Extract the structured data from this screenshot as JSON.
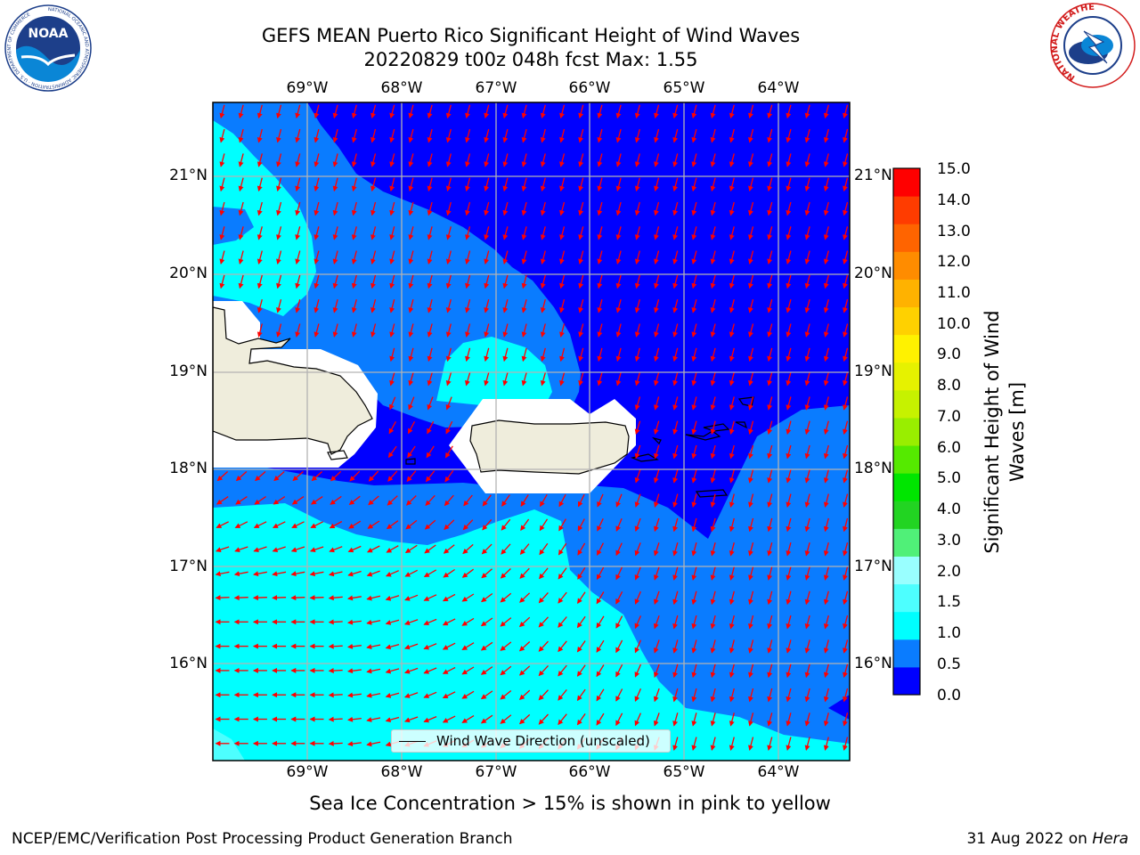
{
  "title": {
    "line1": "GEFS MEAN Puerto Rico Significant Height of Wind Waves",
    "line2": "20220829 t00z 048h fcst   Max: 1.55"
  },
  "map": {
    "lon_ticks": [
      "69°W",
      "68°W",
      "67°W",
      "66°W",
      "65°W",
      "64°W"
    ],
    "lat_ticks": [
      "21°N",
      "20°N",
      "19°N",
      "18°N",
      "17°N",
      "16°N"
    ],
    "extent": {
      "lon": [
        -70.0,
        -63.25
      ],
      "lat": [
        15.0,
        21.75
      ]
    },
    "grid": true,
    "land_color": "#efeddc",
    "wind_wave_direction": "toward south-southwest in the north and east, toward west in the south",
    "legend_label": "Wind Wave Direction (unscaled)"
  },
  "colorbar": {
    "label": "Significant Height of Wind Waves [m]",
    "ticks": [
      "15.0",
      "14.0",
      "13.0",
      "12.0",
      "11.0",
      "10.0",
      "9.0",
      "8.0",
      "7.0",
      "6.0",
      "5.0",
      "4.0",
      "3.0",
      "2.0",
      "1.5",
      "1.0",
      "0.5",
      "0.0"
    ],
    "colors": [
      "#0000ff",
      "#0a7cff",
      "#00ffff",
      "#4dffff",
      "#99ffff",
      "#50f078",
      "#22d422",
      "#00e600",
      "#55ea00",
      "#99ee00",
      "#c6f200",
      "#e6f200",
      "#fff200",
      "#ffd100",
      "#ffb200",
      "#ff8c00",
      "#ff6400",
      "#ff3c00",
      "#ff0000"
    ]
  },
  "logos": {
    "noaa": "NOAA",
    "noaa_ring": "NATIONAL OCEANIC AND ATMOSPHERIC ADMINISTRATION · U.S. DEPARTMENT OF COMMERCE",
    "nws_ring": "NATIONAL WEATHER SERVICE"
  },
  "footer": {
    "sea_ice": "Sea Ice Concentration > 15% is shown in pink to yellow",
    "left": "NCEP/EMC/Verification Post Processing Product Generation Branch",
    "right_date": "31 Aug 2022 on",
    "right_host": "Hera"
  }
}
